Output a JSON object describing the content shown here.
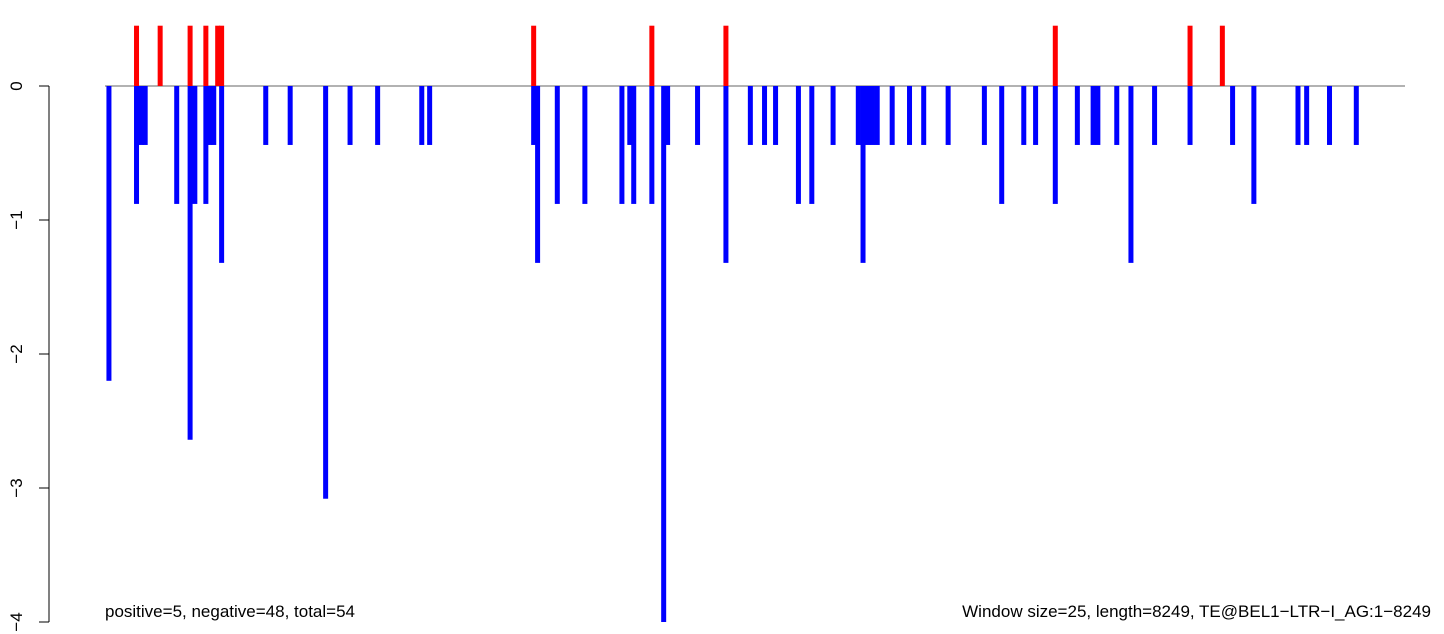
{
  "chart_data": {
    "type": "bar",
    "title": "",
    "xlabel": "",
    "ylabel": "",
    "ylim": [
      -4,
      0.45
    ],
    "xlim": [
      0,
      8249
    ],
    "y_ticks": [
      0,
      -1,
      -2,
      -3,
      -4
    ],
    "y_tick_labels": [
      "0",
      "−1",
      "−2",
      "−3",
      "−4"
    ],
    "grid": false,
    "baseline": 0,
    "colors": {
      "positive": "#ff0000",
      "negative": "#0000ff",
      "baseline": "#999999",
      "axis": "#000000"
    },
    "annotations": {
      "left": "positive=5, negative=48, total=54",
      "right": "Window size=25, length=8249, TE@BEL1−LTR−I_AG:1−8249"
    },
    "positive_bars": [
      {
        "x": 200,
        "y": 0.45
      },
      {
        "x": 350,
        "y": 0.45
      },
      {
        "x": 540,
        "y": 0.45
      },
      {
        "x": 640,
        "y": 0.45
      },
      {
        "x": 715,
        "y": 0.45
      },
      {
        "x": 740,
        "y": 0.45
      },
      {
        "x": 2720,
        "y": 0.45
      },
      {
        "x": 3470,
        "y": 0.45
      },
      {
        "x": 3940,
        "y": 0.45
      },
      {
        "x": 6030,
        "y": 0.45
      },
      {
        "x": 6885,
        "y": 0.45
      },
      {
        "x": 7090,
        "y": 0.45
      }
    ],
    "negative_bars": [
      {
        "x": 25,
        "y": -2.2
      },
      {
        "x": 200,
        "y": -0.88
      },
      {
        "x": 230,
        "y": -0.44
      },
      {
        "x": 255,
        "y": -0.44
      },
      {
        "x": 455,
        "y": -0.88
      },
      {
        "x": 540,
        "y": -2.64
      },
      {
        "x": 570,
        "y": -0.88
      },
      {
        "x": 640,
        "y": -0.88
      },
      {
        "x": 665,
        "y": -0.44
      },
      {
        "x": 690,
        "y": -0.44
      },
      {
        "x": 740,
        "y": -1.32
      },
      {
        "x": 1020,
        "y": -0.44
      },
      {
        "x": 1175,
        "y": -0.44
      },
      {
        "x": 1400,
        "y": -3.08
      },
      {
        "x": 1555,
        "y": -0.44
      },
      {
        "x": 1730,
        "y": -0.44
      },
      {
        "x": 2010,
        "y": -0.44
      },
      {
        "x": 2060,
        "y": -0.44
      },
      {
        "x": 2720,
        "y": -0.44
      },
      {
        "x": 2745,
        "y": -1.32
      },
      {
        "x": 2870,
        "y": -0.88
      },
      {
        "x": 3045,
        "y": -0.88
      },
      {
        "x": 3280,
        "y": -0.88
      },
      {
        "x": 3330,
        "y": -0.44
      },
      {
        "x": 3355,
        "y": -0.88
      },
      {
        "x": 3470,
        "y": -0.88
      },
      {
        "x": 3545,
        "y": -4.0
      },
      {
        "x": 3570,
        "y": -0.44
      },
      {
        "x": 3760,
        "y": -0.44
      },
      {
        "x": 3940,
        "y": -1.32
      },
      {
        "x": 4095,
        "y": -0.44
      },
      {
        "x": 4185,
        "y": -0.44
      },
      {
        "x": 4255,
        "y": -0.44
      },
      {
        "x": 4400,
        "y": -0.88
      },
      {
        "x": 4485,
        "y": -0.88
      },
      {
        "x": 4620,
        "y": -0.44
      },
      {
        "x": 4780,
        "y": -0.44
      },
      {
        "x": 4810,
        "y": -1.32
      },
      {
        "x": 4840,
        "y": -0.44
      },
      {
        "x": 4870,
        "y": -0.44
      },
      {
        "x": 4900,
        "y": -0.44
      },
      {
        "x": 4995,
        "y": -0.44
      },
      {
        "x": 5105,
        "y": -0.44
      },
      {
        "x": 5195,
        "y": -0.44
      },
      {
        "x": 5350,
        "y": -0.44
      },
      {
        "x": 5580,
        "y": -0.44
      },
      {
        "x": 5690,
        "y": -0.88
      },
      {
        "x": 5830,
        "y": -0.44
      },
      {
        "x": 5905,
        "y": -0.44
      },
      {
        "x": 6030,
        "y": -0.88
      },
      {
        "x": 6170,
        "y": -0.44
      },
      {
        "x": 6270,
        "y": -0.44
      },
      {
        "x": 6300,
        "y": -0.44
      },
      {
        "x": 6420,
        "y": -0.44
      },
      {
        "x": 6510,
        "y": -1.32
      },
      {
        "x": 6660,
        "y": -0.44
      },
      {
        "x": 6885,
        "y": -0.44
      },
      {
        "x": 7155,
        "y": -0.44
      },
      {
        "x": 7290,
        "y": -0.88
      },
      {
        "x": 7570,
        "y": -0.44
      },
      {
        "x": 7625,
        "y": -0.44
      },
      {
        "x": 7770,
        "y": -0.44
      },
      {
        "x": 7940,
        "y": -0.44
      }
    ]
  }
}
